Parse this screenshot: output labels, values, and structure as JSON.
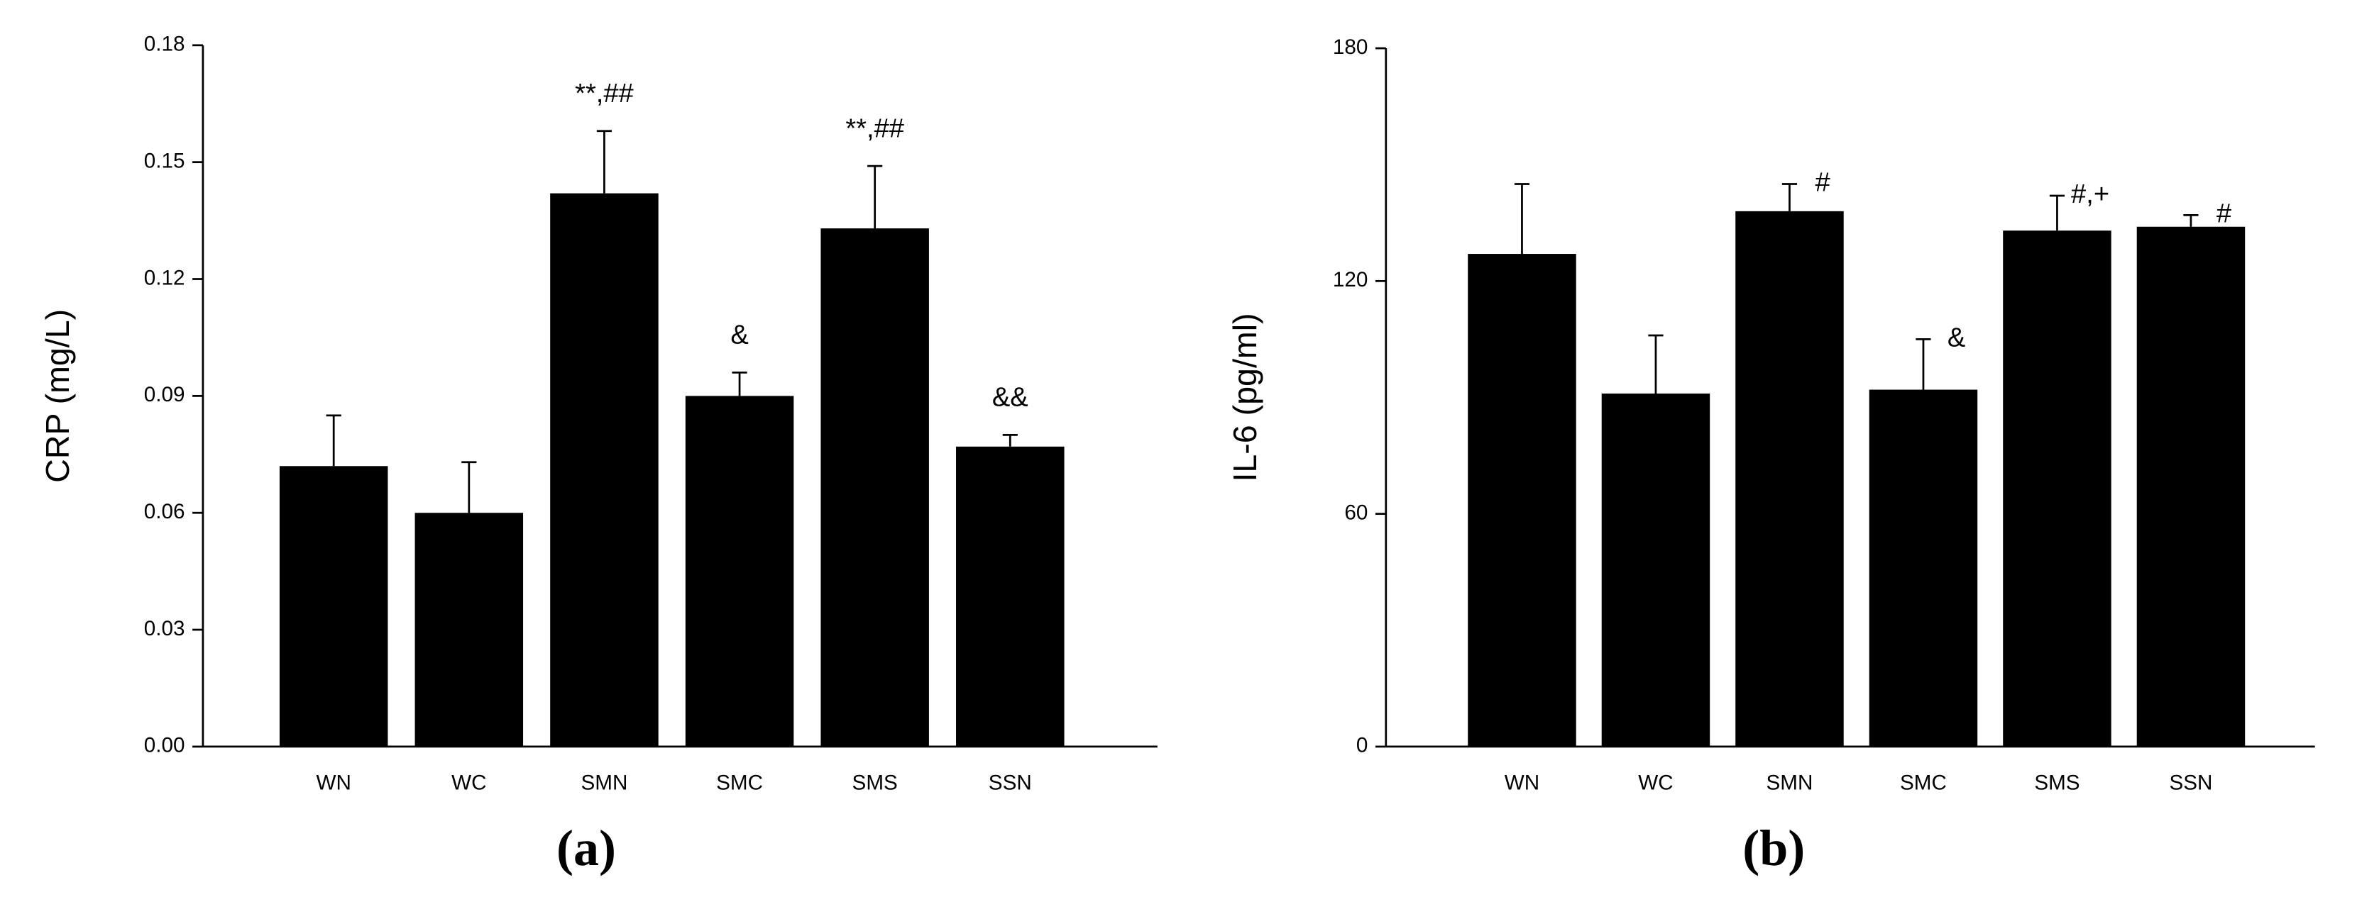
{
  "chart_data": [
    {
      "type": "bar",
      "label": "(a)",
      "y_label": "CRP (mg/L)",
      "color": "#000000",
      "categories": [
        "WN",
        "WC",
        "SMN",
        "SMC",
        "SMS",
        "SSN"
      ],
      "values": [
        0.072,
        0.06,
        0.142,
        0.09,
        0.133,
        0.077
      ],
      "errors": [
        0.013,
        0.013,
        0.016,
        0.006,
        0.016,
        0.003
      ],
      "annotations": [
        null,
        null,
        "**,##",
        "&",
        "**,##",
        "&&"
      ],
      "ylim": [
        0,
        0.18
      ],
      "yticks": [
        {
          "value": 0,
          "label": "0.00"
        },
        0.03,
        0.06,
        0.09,
        0.12,
        0.15,
        0.18
      ]
    },
    {
      "type": "bar",
      "label": "(b)",
      "y_label": "IL-6 (pg/ml)",
      "color": "#000000",
      "categories": [
        "WN",
        "WC",
        "SMN",
        "SMC",
        "SMS",
        "SSN"
      ],
      "values": [
        127,
        91,
        138,
        92,
        133,
        134
      ],
      "errors": [
        18,
        15,
        7,
        13,
        9,
        3
      ],
      "annotations": [
        null,
        null,
        "#",
        "&",
        "#,+",
        "#"
      ],
      "ylim": [
        0,
        180
      ],
      "yticks": [
        0,
        60,
        120,
        180
      ]
    }
  ]
}
